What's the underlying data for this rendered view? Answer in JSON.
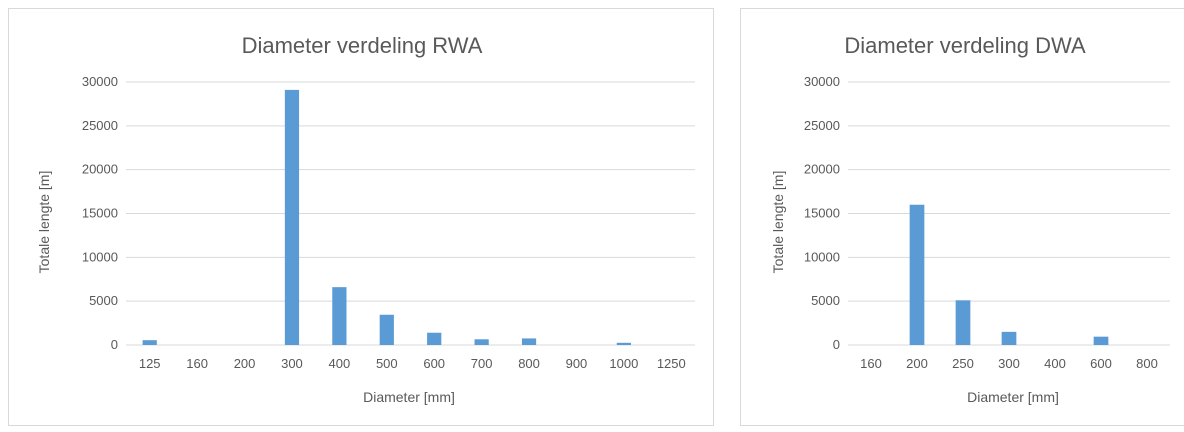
{
  "bar_color": "#5b9bd5",
  "grid_color": "#d9d9d9",
  "chart_data": [
    {
      "type": "bar",
      "title": "Diameter verdeling RWA",
      "xlabel": "Diameter [mm]",
      "ylabel": "Totale lengte [m]",
      "ylim": [
        0,
        30000
      ],
      "yticks": [
        "0",
        "5000",
        "10000",
        "15000",
        "20000",
        "25000",
        "30000"
      ],
      "grid": true,
      "categories": [
        "125",
        "160",
        "200",
        "300",
        "400",
        "500",
        "600",
        "700",
        "800",
        "900",
        "1000",
        "1250"
      ],
      "values": [
        550,
        0,
        0,
        29100,
        6600,
        3450,
        1400,
        650,
        750,
        0,
        250,
        0
      ]
    },
    {
      "type": "bar",
      "title": "Diameter verdeling DWA",
      "xlabel": "Diameter [mm]",
      "ylabel": "Totale lengte [m]",
      "ylim": [
        0,
        30000
      ],
      "yticks": [
        "0",
        "5000",
        "10000",
        "15000",
        "20000",
        "25000",
        "30000"
      ],
      "grid": true,
      "categories": [
        "160",
        "200",
        "250",
        "300",
        "400",
        "600",
        "800"
      ],
      "values": [
        0,
        16000,
        5100,
        1500,
        0,
        950,
        0
      ]
    }
  ]
}
